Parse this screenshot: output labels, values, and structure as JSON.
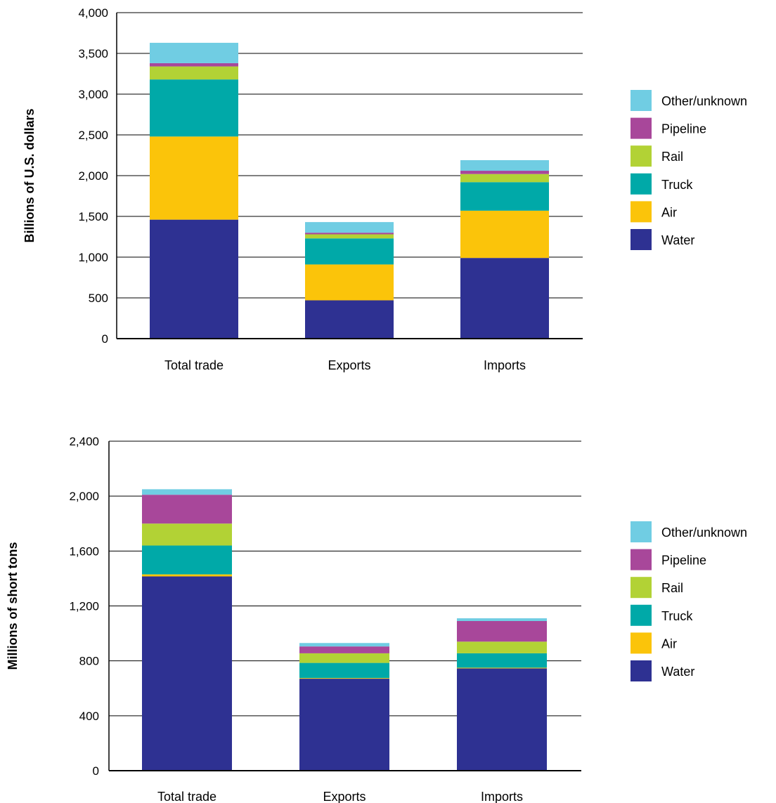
{
  "chart_data": [
    {
      "type": "bar",
      "stacked": true,
      "categories": [
        "Total trade",
        "Exports",
        "Imports"
      ],
      "ylabel": "Billions of U.S. dollars",
      "ylim": [
        0,
        4000
      ],
      "yticks": [
        0,
        500,
        1000,
        1500,
        2000,
        2500,
        3000,
        3500,
        4000
      ],
      "ytick_labels": [
        "0",
        "500",
        "1,000",
        "1,500",
        "2,000",
        "2,500",
        "3,000",
        "3,500",
        "4,000"
      ],
      "grid": true,
      "legend_position": "right",
      "series": [
        {
          "name": "Water",
          "color": "#2e3192",
          "values": [
            1460,
            470,
            990
          ]
        },
        {
          "name": "Air",
          "color": "#fbc40a",
          "values": [
            1020,
            440,
            580
          ]
        },
        {
          "name": "Truck",
          "color": "#00a9a8",
          "values": [
            700,
            320,
            350
          ]
        },
        {
          "name": "Rail",
          "color": "#b2d235",
          "values": [
            160,
            50,
            100
          ]
        },
        {
          "name": "Pipeline",
          "color": "#a8479a",
          "values": [
            40,
            20,
            40
          ]
        },
        {
          "name": "Other/unknown",
          "color": "#70cde3",
          "values": [
            250,
            130,
            130
          ]
        }
      ]
    },
    {
      "type": "bar",
      "stacked": true,
      "categories": [
        "Total trade",
        "Exports",
        "Imports"
      ],
      "ylabel": "Millions of short tons",
      "ylim": [
        0,
        2400
      ],
      "yticks": [
        0,
        400,
        800,
        1200,
        1600,
        2000,
        2400
      ],
      "ytick_labels": [
        "0",
        "400",
        "800",
        "1,200",
        "1,600",
        "2,000",
        "2,400"
      ],
      "grid": true,
      "legend_position": "right",
      "series": [
        {
          "name": "Water",
          "color": "#2e3192",
          "values": [
            1415,
            670,
            745
          ]
        },
        {
          "name": "Air",
          "color": "#fbc40a",
          "values": [
            15,
            5,
            5
          ]
        },
        {
          "name": "Truck",
          "color": "#00a9a8",
          "values": [
            210,
            110,
            105
          ]
        },
        {
          "name": "Rail",
          "color": "#b2d235",
          "values": [
            160,
            70,
            85
          ]
        },
        {
          "name": "Pipeline",
          "color": "#a8479a",
          "values": [
            210,
            50,
            150
          ]
        },
        {
          "name": "Other/unknown",
          "color": "#70cde3",
          "values": [
            40,
            25,
            20
          ]
        }
      ]
    }
  ]
}
